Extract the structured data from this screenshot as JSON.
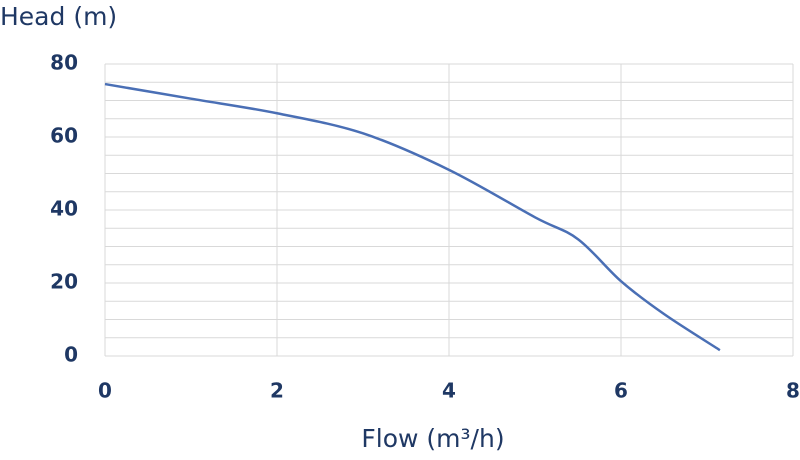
{
  "chart_data": {
    "type": "line",
    "ylabel": "Head (m)",
    "xlabel": "Flow (m³/h)",
    "x": [
      0,
      1,
      2,
      3,
      4,
      5,
      5.5,
      6,
      6.5,
      7.15
    ],
    "series": [
      {
        "name": "Head",
        "color": "#4a6fb5",
        "values": [
          74.5,
          70.5,
          66.5,
          61,
          51,
          38,
          32,
          20.5,
          11.5,
          1.6
        ]
      }
    ],
    "xlim": [
      0,
      8
    ],
    "xticks": [
      0,
      2,
      4,
      6,
      8
    ],
    "ylim": [
      0,
      80
    ],
    "yticks": [
      0,
      20,
      40,
      60,
      80
    ],
    "y_minor_ticks": [
      5,
      10,
      15,
      25,
      30,
      35,
      45,
      50,
      55,
      65,
      70,
      75
    ],
    "grid": true
  }
}
